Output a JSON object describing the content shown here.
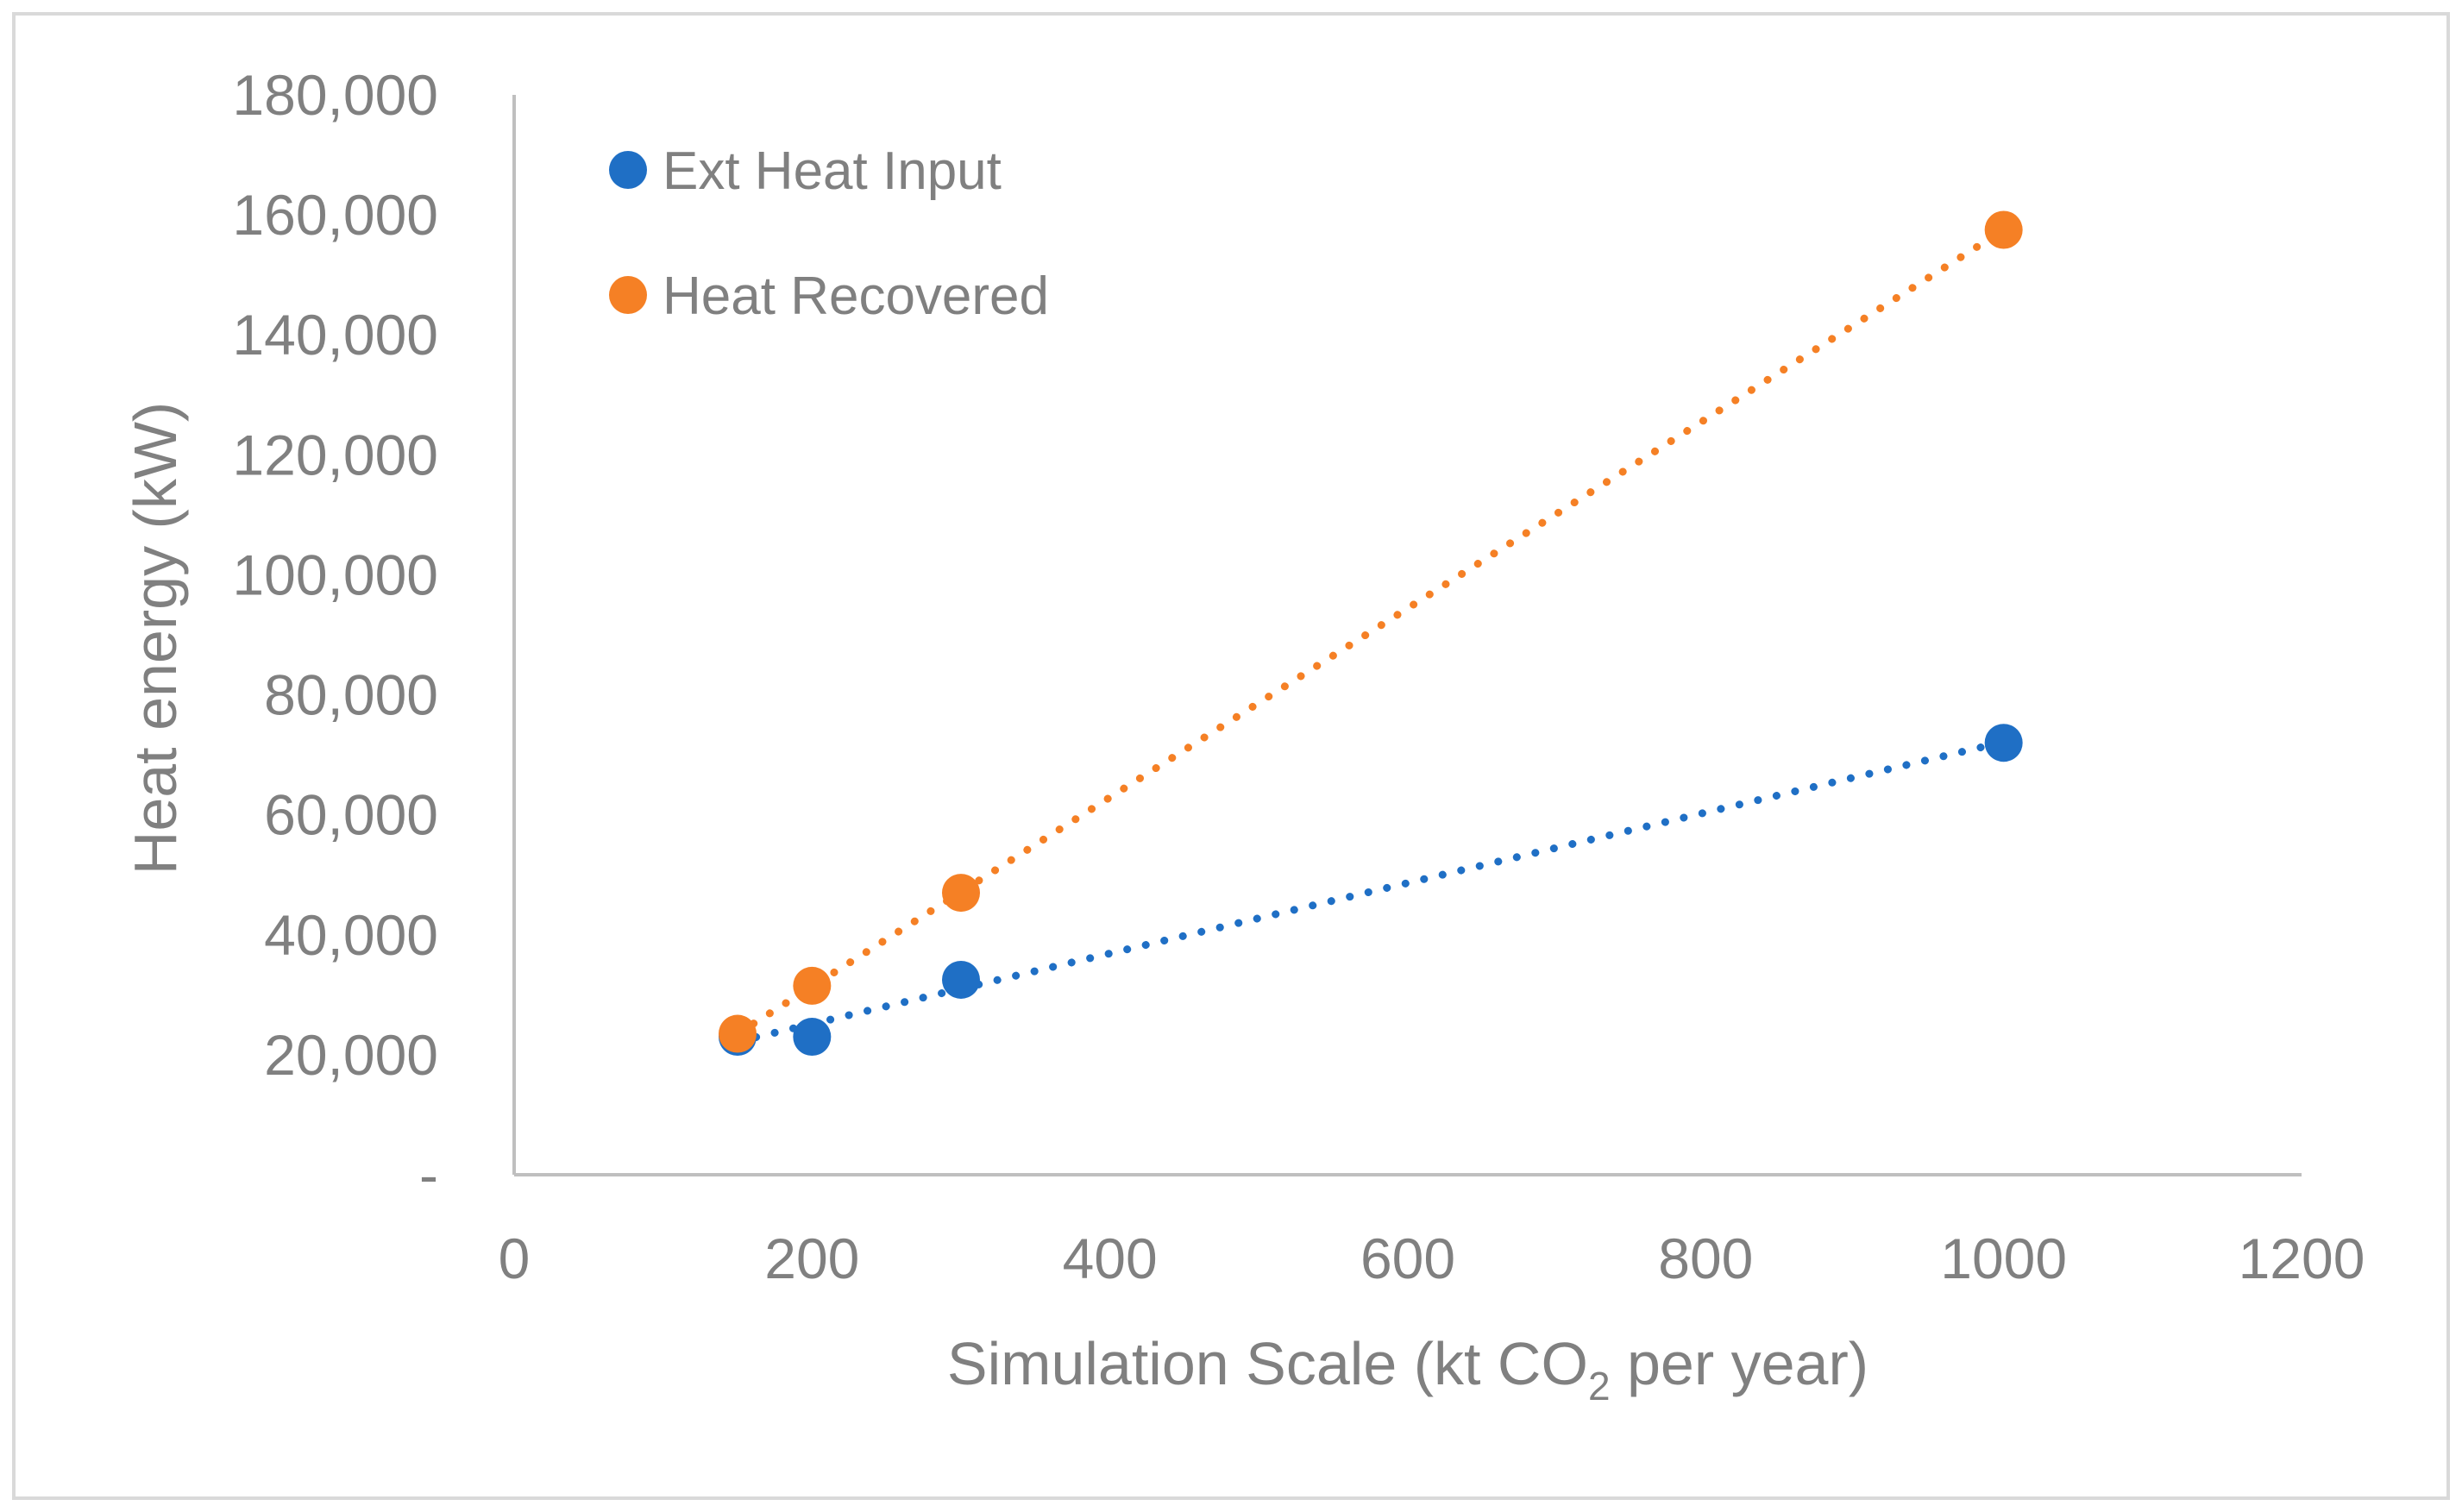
{
  "chart_data": {
    "type": "scatter",
    "title": "",
    "xlabel": "Simulation Scale (kt CO",
    "xlabel_subscript": "2",
    "xlabel_suffix": " per year)",
    "ylabel": "Heat energy (kW)",
    "xlim": [
      0,
      1200
    ],
    "ylim": [
      0,
      180000
    ],
    "x_ticks": [
      0,
      200,
      400,
      600,
      800,
      1000,
      1200
    ],
    "x_tick_labels": [
      "0",
      "200",
      "400",
      "600",
      "800",
      "1000",
      "1200"
    ],
    "y_ticks": [
      0,
      20000,
      40000,
      60000,
      80000,
      100000,
      120000,
      140000,
      160000,
      180000
    ],
    "y_tick_labels": [
      "-",
      "20,000",
      "40,000",
      "60,000",
      "80,000",
      "100,000",
      "120,000",
      "140,000",
      "160,000",
      "180,000"
    ],
    "grid": false,
    "legend_position": "top-left",
    "trendline": "linear, dotted",
    "series": [
      {
        "name": "Ext Heat Input",
        "color": "#1f6fc5",
        "x": [
          150,
          200,
          300,
          1000
        ],
        "y": [
          23000,
          23000,
          32500,
          72000
        ]
      },
      {
        "name": "Heat Recovered",
        "color": "#f58025",
        "x": [
          150,
          200,
          300,
          1000
        ],
        "y": [
          23500,
          31500,
          47000,
          157500
        ]
      }
    ]
  }
}
